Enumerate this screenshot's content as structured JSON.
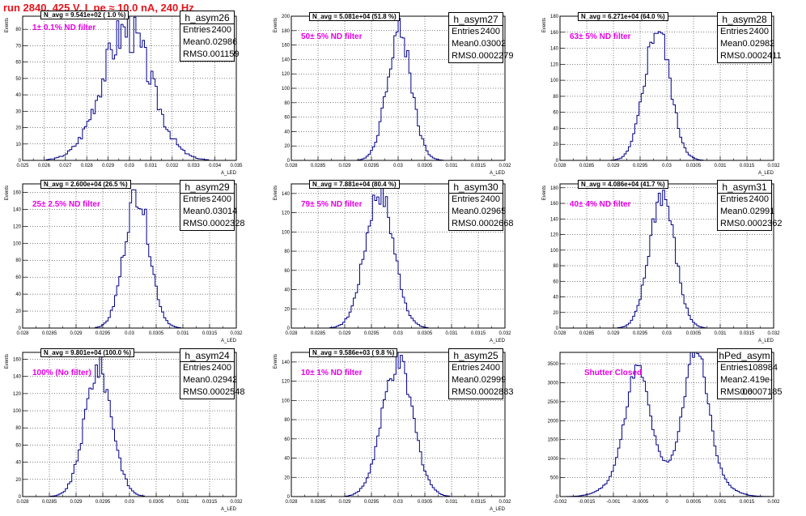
{
  "title": "run 2840,   425 V, I_pe ≈ 10.0 nA, 240 Hz",
  "chart_data": [
    {
      "type": "histogram",
      "name": "h_asym26",
      "entries": "2400",
      "mean": "0.02986",
      "rms": "0.001159",
      "navg": "N_avg = 9.541e+02 ( 1.0 %)",
      "filter": "1± 0.1% ND filter",
      "ylabel": "Events",
      "xlabel": "A_LED",
      "xlim": [
        0.025,
        0.035
      ],
      "ylim": [
        0,
        88
      ],
      "xticks": [
        "0.025",
        "0.026",
        "0.027",
        "0.028",
        "0.029",
        "0.03",
        "0.031",
        "0.032",
        "0.033",
        "0.034",
        "0.035"
      ],
      "yticks": [
        "0",
        "10",
        "20",
        "30",
        "40",
        "50",
        "60",
        "70",
        "80"
      ],
      "peak_x": 0.02986,
      "sigma": 0.001159,
      "peak_y": 80,
      "shape": "noisy"
    },
    {
      "type": "histogram",
      "name": "h_asym27",
      "entries": "2400",
      "mean": "0.03002",
      "rms": "0.0002279",
      "navg": "N_avg = 5.081e+04 (51.8 %)",
      "filter": "50± 5% ND filter",
      "ylabel": "Events",
      "xlabel": "A_LED",
      "xlim": [
        0.028,
        0.032
      ],
      "ylim": [
        0,
        200
      ],
      "xticks": [
        "0.028",
        "0.0285",
        "0.029",
        "0.0295",
        "0.03",
        "0.0305",
        "0.031",
        "0.0315",
        "0.032"
      ],
      "yticks": [
        "0",
        "20",
        "40",
        "60",
        "80",
        "100",
        "120",
        "140",
        "160",
        "180",
        "200"
      ],
      "peak_x": 0.03002,
      "sigma": 0.0002279,
      "peak_y": 180,
      "shape": "gauss"
    },
    {
      "type": "histogram",
      "name": "h_asym28",
      "entries": "2400",
      "mean": "0.02982",
      "rms": "0.0002411",
      "navg": "N_avg = 6.271e+04 (64.0 %)",
      "filter": "63± 5% ND filter",
      "ylabel": "Events",
      "xlabel": "A_LED",
      "xlim": [
        0.028,
        0.032
      ],
      "ylim": [
        0,
        180
      ],
      "xticks": [
        "0.028",
        "0.0285",
        "0.029",
        "0.0295",
        "0.03",
        "0.0305",
        "0.031",
        "0.0315",
        "0.032"
      ],
      "yticks": [
        "0",
        "20",
        "40",
        "60",
        "80",
        "100",
        "120",
        "140",
        "160",
        "180"
      ],
      "peak_x": 0.02982,
      "sigma": 0.0002411,
      "peak_y": 165,
      "shape": "gauss"
    },
    {
      "type": "histogram",
      "name": "h_asym29",
      "entries": "2400",
      "mean": "0.03014",
      "rms": "0.0002328",
      "navg": "N_avg = 2.600e+04 (26.5 %)",
      "filter": "25± 2.5% ND filter",
      "ylabel": "Events",
      "xlabel": "A_LED",
      "xlim": [
        0.028,
        0.032
      ],
      "ylim": [
        0,
        170
      ],
      "xticks": [
        "0.028",
        "0.0285",
        "0.029",
        "0.0295",
        "0.03",
        "0.0305",
        "0.031",
        "0.0315",
        "0.032"
      ],
      "yticks": [
        "0",
        "20",
        "40",
        "60",
        "80",
        "100",
        "120",
        "140",
        "160"
      ],
      "peak_x": 0.03014,
      "sigma": 0.0002328,
      "peak_y": 160,
      "shape": "gauss"
    },
    {
      "type": "histogram",
      "name": "h_asym30",
      "entries": "2400",
      "mean": "0.02965",
      "rms": "0.0002668",
      "navg": "N_avg = 7.881e+04 (80.4 %)",
      "filter": "79± 5% ND filter",
      "ylabel": "Events",
      "xlabel": "A_LED",
      "xlim": [
        0.028,
        0.032
      ],
      "ylim": [
        0,
        150
      ],
      "xticks": [
        "0.028",
        "0.0285",
        "0.029",
        "0.0295",
        "0.03",
        "0.0305",
        "0.031",
        "0.0315",
        "0.032"
      ],
      "yticks": [
        "0",
        "20",
        "40",
        "60",
        "80",
        "100",
        "120",
        "140"
      ],
      "peak_x": 0.02965,
      "sigma": 0.0002668,
      "peak_y": 142,
      "shape": "gauss"
    },
    {
      "type": "histogram",
      "name": "h_asym31",
      "entries": "2400",
      "mean": "0.02991",
      "rms": "0.0002362",
      "navg": "N_avg = 4.086e+04 (41.7 %)",
      "filter": "40± 4% ND filter",
      "ylabel": "Events",
      "xlabel": "A_LED",
      "xlim": [
        0.028,
        0.032
      ],
      "ylim": [
        0,
        185
      ],
      "xticks": [
        "0.028",
        "0.0285",
        "0.029",
        "0.0295",
        "0.03",
        "0.0305",
        "0.031",
        "0.0315",
        "0.032"
      ],
      "yticks": [
        "0",
        "20",
        "40",
        "60",
        "80",
        "100",
        "120",
        "140",
        "160",
        "180"
      ],
      "peak_x": 0.02991,
      "sigma": 0.0002362,
      "peak_y": 172,
      "shape": "gauss"
    },
    {
      "type": "histogram",
      "name": "h_asym24",
      "entries": "2400",
      "mean": "0.02942",
      "rms": "0.0002548",
      "navg": "N_avg = 9.801e+04 (100.0 %)",
      "filter": "100% (No filter)",
      "ylabel": "Events",
      "xlabel": "A_LED",
      "xlim": [
        0.028,
        0.032
      ],
      "ylim": [
        0,
        168
      ],
      "xticks": [
        "0.028",
        "0.0285",
        "0.029",
        "0.0295",
        "0.03",
        "0.0305",
        "0.031",
        "0.0315",
        "0.032"
      ],
      "yticks": [
        "0",
        "20",
        "40",
        "60",
        "80",
        "100",
        "120",
        "140",
        "160"
      ],
      "peak_x": 0.02942,
      "sigma": 0.0002548,
      "peak_y": 150,
      "shape": "gauss"
    },
    {
      "type": "histogram",
      "name": "h_asym25",
      "entries": "2400",
      "mean": "0.02999",
      "rms": "0.0002883",
      "navg": "N_avg = 9.586e+03 ( 9.8 %)",
      "filter": "10± 1% ND filter",
      "ylabel": "Events",
      "xlabel": "A_LED",
      "xlim": [
        0.028,
        0.032
      ],
      "ylim": [
        0,
        150
      ],
      "xticks": [
        "0.028",
        "0.0285",
        "0.029",
        "0.0295",
        "0.03",
        "0.0305",
        "0.031",
        "0.0315",
        "0.032"
      ],
      "yticks": [
        "0",
        "20",
        "40",
        "60",
        "80",
        "100",
        "120",
        "140"
      ],
      "peak_x": 0.02999,
      "sigma": 0.0002883,
      "peak_y": 138,
      "shape": "gauss"
    },
    {
      "type": "histogram",
      "name": "hPed_asym",
      "entries": "108984",
      "mean": "2.419e-06",
      "rms": "0.0007185",
      "navg": "",
      "filter": "Shutter Closed",
      "ylabel": "",
      "xlabel": "",
      "xlim": [
        -0.002,
        0.002
      ],
      "ylim": [
        0,
        3800
      ],
      "xticks": [
        "-0.002",
        "-0.0015",
        "-0.001",
        "-0.0005",
        "0",
        "0.0005",
        "0.001",
        "0.0015",
        "0.002"
      ],
      "yticks": [
        "0",
        "500",
        "1000",
        "1500",
        "2000",
        "2500",
        "3000",
        "3500"
      ],
      "peak_x": 0,
      "sigma": 0.0007185,
      "peak_y": 3500,
      "shape": "double"
    }
  ],
  "colors": {
    "title": "#e8141c",
    "line": "#00008b",
    "filter": "#e600e6"
  }
}
